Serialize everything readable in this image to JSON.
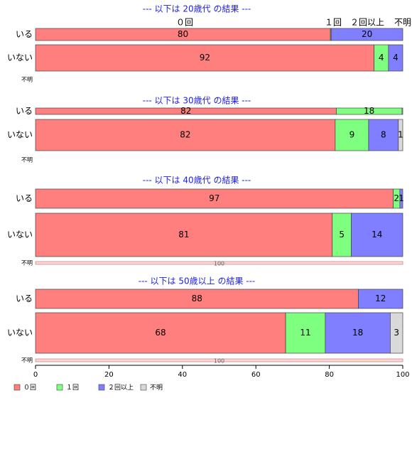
{
  "chart_data": {
    "type": "bar",
    "orientation": "horizontal",
    "stacked": "percent",
    "xlim": [
      0,
      100
    ],
    "x_ticks": [
      "0",
      "20",
      "40",
      "60",
      "80",
      "100"
    ],
    "legend": {
      "placement": "bottom-left",
      "entries": [
        "０回",
        "１回",
        "２回以上",
        "不明"
      ]
    },
    "colors": {
      "０回": "#ff7f7f",
      "１回": "#7fff7f",
      "２回以上": "#7f7fff",
      "不明": "#d9d9d9"
    },
    "category_labels": {
      "0": "０回",
      "1": "１回",
      "2": "２回以上",
      "3": "不明"
    },
    "groups": [
      {
        "title": "--- 以下は 20歳代 の結果 ---",
        "rows": [
          {
            "label": "いる",
            "values": [
              80.3,
              0.2,
              19.5,
              0
            ],
            "labels": [
              "80",
              "",
              "20",
              ""
            ]
          },
          {
            "label": "いない",
            "values": [
              92.2,
              3.9,
              3.9,
              0
            ],
            "labels": [
              "92",
              "4",
              "4",
              ""
            ]
          },
          {
            "label": "不明",
            "values": [
              0,
              0,
              0,
              0
            ],
            "labels": [
              "",
              "",
              "",
              ""
            ]
          }
        ]
      },
      {
        "title": "--- 以下は 30歳代 の結果 ---",
        "rows": [
          {
            "label": "いる",
            "values": [
              81.9,
              17.9,
              0,
              0.2
            ],
            "labels": [
              "82",
              "18",
              "",
              ""
            ]
          },
          {
            "label": "いない",
            "values": [
              81.6,
              9.1,
              8.1,
              1.2
            ],
            "labels": [
              "82",
              "9",
              "8",
              "1"
            ]
          },
          {
            "label": "不明",
            "values": [
              0,
              0,
              0,
              0
            ],
            "labels": [
              "",
              "",
              "",
              ""
            ]
          }
        ]
      },
      {
        "title": "--- 以下は 40歳代 の結果 ---",
        "rows": [
          {
            "label": "いる",
            "values": [
              97.4,
              1.8,
              0.8,
              0
            ],
            "labels": [
              "97",
              "2",
              "1",
              ""
            ]
          },
          {
            "label": "いない",
            "values": [
              80.8,
              5.2,
              14.0,
              0
            ],
            "labels": [
              "81",
              "5",
              "14",
              ""
            ]
          },
          {
            "label": "不明",
            "values": [
              100,
              0,
              0,
              0
            ],
            "labels": [
              "100",
              "",
              "",
              ""
            ]
          }
        ]
      },
      {
        "title": "--- 以下は 50歳以上 の結果 ---",
        "rows": [
          {
            "label": "いる",
            "values": [
              87.9,
              0,
              12.1,
              0
            ],
            "labels": [
              "88",
              "",
              "12",
              ""
            ]
          },
          {
            "label": "いない",
            "values": [
              68.1,
              10.8,
              17.7,
              3.4
            ],
            "labels": [
              "68",
              "11",
              "18",
              "3"
            ]
          },
          {
            "label": "不明",
            "values": [
              100,
              0,
              0,
              0
            ],
            "labels": [
              "100",
              "",
              "",
              ""
            ]
          }
        ]
      }
    ]
  }
}
